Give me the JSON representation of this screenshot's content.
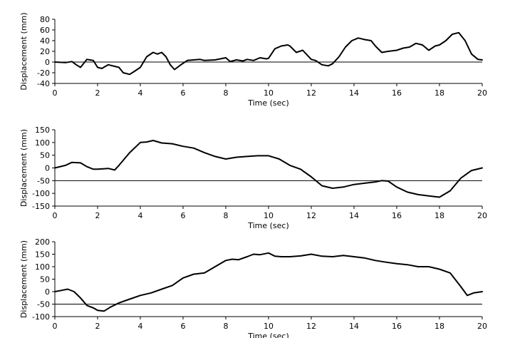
{
  "chart_data": [
    {
      "type": "line",
      "xlabel": "Time (sec)",
      "ylabel": "Displacement (mm)",
      "xlim": [
        0,
        20
      ],
      "ylim": [
        -40,
        80
      ],
      "xticks": [
        "0",
        "2",
        "4",
        "6",
        "8",
        "10",
        "12",
        "14",
        "16",
        "18",
        "20"
      ],
      "yticks": [
        "80",
        "60",
        "40",
        "20",
        "0",
        "-20",
        "-40"
      ],
      "grid": false,
      "legend": "none",
      "series": [
        {
          "color": "#000000",
          "x": [
            0,
            0.5,
            0.8,
            1.0,
            1.2,
            1.5,
            1.8,
            2.0,
            2.2,
            2.5,
            2.8,
            3.0,
            3.2,
            3.5,
            3.7,
            4.0,
            4.3,
            4.6,
            4.8,
            5.0,
            5.2,
            5.4,
            5.6,
            5.9,
            6.2,
            6.5,
            6.8,
            7.0,
            7.5,
            8.0,
            8.2,
            8.5,
            8.8,
            9.0,
            9.3,
            9.6,
            9.9,
            10.0,
            10.3,
            10.6,
            10.9,
            11.0,
            11.3,
            11.6,
            12.0,
            12.2,
            12.5,
            12.8,
            13.0,
            13.3,
            13.6,
            13.9,
            14.2,
            14.5,
            14.8,
            15.0,
            15.3,
            15.6,
            16.0,
            16.3,
            16.6,
            16.9,
            17.2,
            17.5,
            17.8,
            18.0,
            18.3,
            18.6,
            18.9,
            19.2,
            19.5,
            19.8,
            20.0
          ],
          "values": [
            0,
            -1,
            1,
            -5,
            -10,
            5,
            3,
            -10,
            -12,
            -5,
            -8,
            -10,
            -20,
            -23,
            -18,
            -10,
            10,
            18,
            15,
            18,
            10,
            -5,
            -14,
            -5,
            3,
            4,
            5,
            3,
            4,
            8,
            1,
            4,
            2,
            5,
            3,
            8,
            6,
            7,
            25,
            30,
            32,
            30,
            18,
            22,
            5,
            3,
            -5,
            -7,
            -3,
            10,
            28,
            40,
            45,
            42,
            40,
            30,
            18,
            20,
            22,
            26,
            28,
            35,
            32,
            22,
            30,
            32,
            40,
            52,
            55,
            40,
            15,
            5,
            4
          ]
        }
      ]
    },
    {
      "type": "line",
      "xlabel": "Time (sec)",
      "ylabel": "Displacement (mm)",
      "xlim": [
        0,
        20
      ],
      "ylim": [
        -150,
        150
      ],
      "xticks": [
        "0",
        "2",
        "4",
        "6",
        "8",
        "10",
        "12",
        "14",
        "16",
        "18",
        "20"
      ],
      "yticks": [
        "150",
        "100",
        "50",
        "0",
        "-50",
        "-100",
        "-150"
      ],
      "grid": false,
      "legend": "none",
      "series": [
        {
          "color": "#000000",
          "x": [
            0,
            0.5,
            0.8,
            1.2,
            1.5,
            1.8,
            2.0,
            2.5,
            2.8,
            3.0,
            3.5,
            4.0,
            4.3,
            4.6,
            5.0,
            5.5,
            6.0,
            6.5,
            7.0,
            7.5,
            8.0,
            8.5,
            9.0,
            9.5,
            10.0,
            10.5,
            11.0,
            11.5,
            12.0,
            12.5,
            13.0,
            13.5,
            14.0,
            14.5,
            15.0,
            15.3,
            15.6,
            16.0,
            16.5,
            17.0,
            17.5,
            18.0,
            18.5,
            19.0,
            19.5,
            20.0
          ],
          "values": [
            0,
            10,
            22,
            20,
            5,
            -5,
            -5,
            -2,
            -8,
            10,
            60,
            100,
            102,
            108,
            98,
            95,
            85,
            78,
            60,
            45,
            35,
            42,
            45,
            48,
            48,
            35,
            10,
            -5,
            -35,
            -70,
            -80,
            -75,
            -65,
            -60,
            -55,
            -50,
            -52,
            -75,
            -95,
            -105,
            -110,
            -115,
            -90,
            -40,
            -10,
            0
          ]
        }
      ]
    },
    {
      "type": "line",
      "xlabel": "Time (sec)",
      "ylabel": "Displacement (mm)",
      "xlim": [
        0,
        20
      ],
      "ylim": [
        -100,
        200
      ],
      "xticks": [
        "0",
        "2",
        "4",
        "6",
        "8",
        "10",
        "12",
        "14",
        "16",
        "18",
        "20"
      ],
      "yticks": [
        "200",
        "150",
        "100",
        "50",
        "0",
        "-50",
        "-100"
      ],
      "grid": false,
      "legend": "none",
      "series": [
        {
          "color": "#000000",
          "x": [
            0,
            0.3,
            0.6,
            0.9,
            1.2,
            1.5,
            1.8,
            2.0,
            2.3,
            2.6,
            3.0,
            3.5,
            4.0,
            4.5,
            5.0,
            5.5,
            6.0,
            6.5,
            7.0,
            7.5,
            8.0,
            8.3,
            8.6,
            9.0,
            9.3,
            9.6,
            10.0,
            10.3,
            10.6,
            11.0,
            11.5,
            12.0,
            12.5,
            13.0,
            13.5,
            14.0,
            14.5,
            15.0,
            15.5,
            16.0,
            16.5,
            17.0,
            17.5,
            18.0,
            18.5,
            19.0,
            19.3,
            19.6,
            20.0
          ],
          "values": [
            0,
            5,
            10,
            0,
            -25,
            -55,
            -65,
            -75,
            -78,
            -62,
            -45,
            -30,
            -15,
            -5,
            10,
            25,
            55,
            70,
            75,
            100,
            125,
            130,
            128,
            140,
            150,
            148,
            155,
            142,
            140,
            140,
            143,
            150,
            142,
            140,
            145,
            140,
            135,
            125,
            118,
            112,
            108,
            100,
            100,
            90,
            75,
            20,
            -15,
            -5,
            0
          ]
        }
      ]
    }
  ]
}
